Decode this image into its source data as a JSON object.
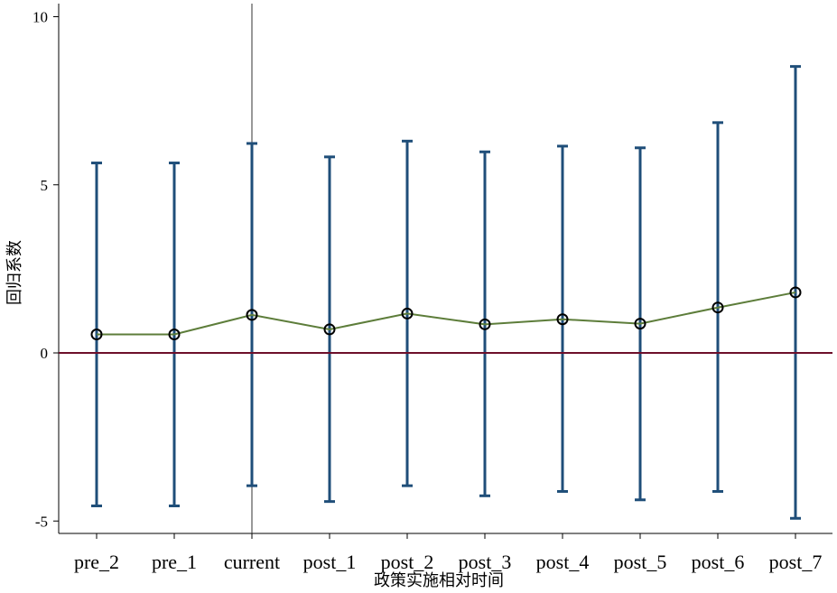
{
  "chart_data": {
    "type": "line",
    "title": "",
    "xlabel": "政策实施相对时间",
    "ylabel": "回归系数",
    "categories": [
      "pre_2",
      "pre_1",
      "current",
      "post_1",
      "post_2",
      "post_3",
      "post_4",
      "post_5",
      "post_6",
      "post_7"
    ],
    "series": [
      {
        "values": [
          0.55,
          0.55,
          1.13,
          0.7,
          1.17,
          0.85,
          1.0,
          0.87,
          1.35,
          1.8
        ],
        "ci_low": [
          -4.55,
          -4.55,
          -3.95,
          -4.42,
          -3.95,
          -4.25,
          -4.12,
          -4.37,
          -4.12,
          -4.92
        ],
        "ci_high": [
          5.65,
          5.65,
          6.23,
          5.83,
          6.3,
          5.98,
          6.15,
          6.1,
          6.85,
          8.52
        ]
      }
    ],
    "ylim": [
      -5.4,
      10.3
    ],
    "yticks": [
      -5,
      0,
      5,
      10
    ],
    "ytick_labels": [
      "-5",
      "0",
      "5",
      "10"
    ],
    "reference_hline": 0,
    "reference_vline_category": "current",
    "grid": false,
    "legend": "none",
    "colors": {
      "line": "#5d7d3a",
      "markers": "#000000",
      "ci": "#1f4e79",
      "hline": "#6d0f2a",
      "vline": "#333333",
      "axis": "#000000"
    }
  }
}
